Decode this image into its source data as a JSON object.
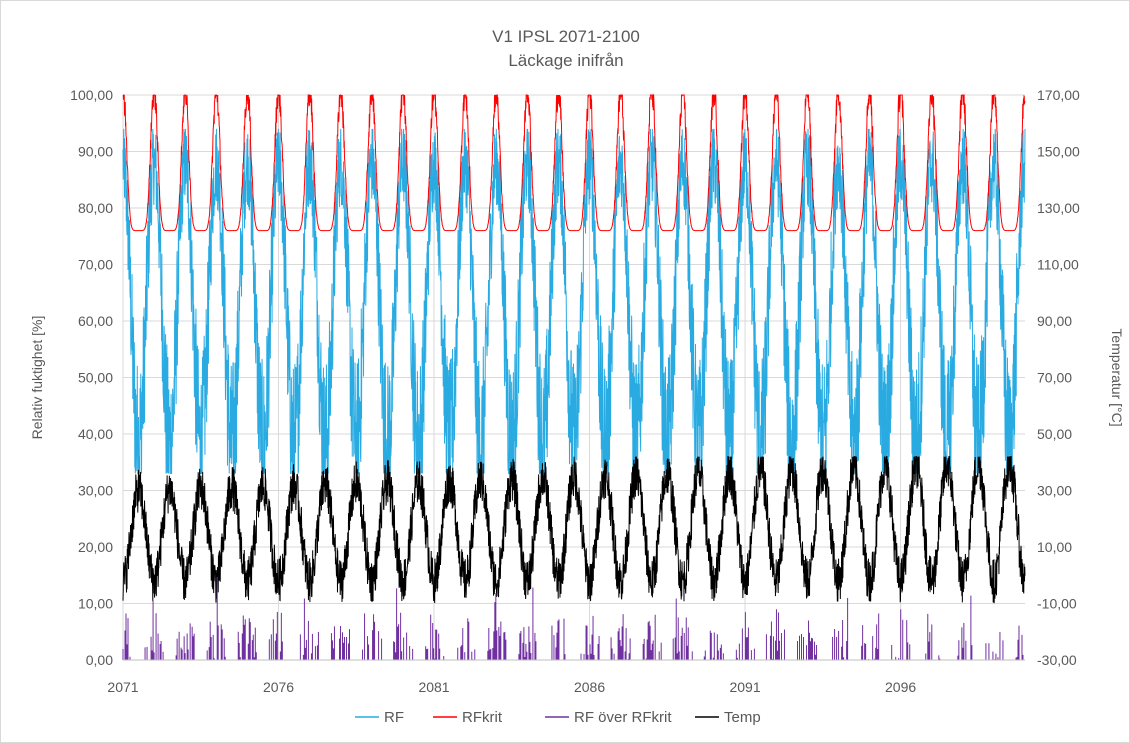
{
  "chart_data": {
    "type": "line",
    "title": "V1 IPSL 2071-2100",
    "subtitle": "Läckage inifrån",
    "ylabel": "Relativ fuktighet [%]",
    "y2label": "Temperatur [°C]",
    "xlim": [
      2071,
      2100
    ],
    "ylim": [
      0,
      100
    ],
    "y2lim": [
      -30,
      170
    ],
    "x_ticks": [
      "2071",
      "2076",
      "2081",
      "2086",
      "2091",
      "2096"
    ],
    "y_ticks": [
      "0,00",
      "10,00",
      "20,00",
      "30,00",
      "40,00",
      "50,00",
      "60,00",
      "70,00",
      "80,00",
      "90,00",
      "100,00"
    ],
    "y2_ticks": [
      "-30,00",
      "-10,00",
      "10,00",
      "30,00",
      "50,00",
      "70,00",
      "90,00",
      "110,00",
      "130,00",
      "150,00",
      "170,00"
    ],
    "grid": "horizontal",
    "legend_position": "bottom",
    "series": [
      {
        "name": "RF",
        "axis": "left",
        "color": "#29abe2",
        "summary": {
          "min": 33,
          "max": 94,
          "annual_peak": 88,
          "annual_trough": 38
        }
      },
      {
        "name": "RFkrit",
        "axis": "left",
        "color": "#ff0000",
        "summary": {
          "min": 76,
          "max": 100,
          "annual_peak": 100,
          "annual_trough": 76
        }
      },
      {
        "name": "RF över RFkrit",
        "axis": "left",
        "color": "#7030a0",
        "summary": {
          "min": 0,
          "max": 15,
          "typical_peak": 9
        }
      },
      {
        "name": "Temp",
        "axis": "right",
        "color": "#000000",
        "summary": {
          "min": -12,
          "max": 42,
          "summer_peak_start": 30,
          "summer_peak_end": 40,
          "winter_low": -2
        }
      }
    ]
  }
}
